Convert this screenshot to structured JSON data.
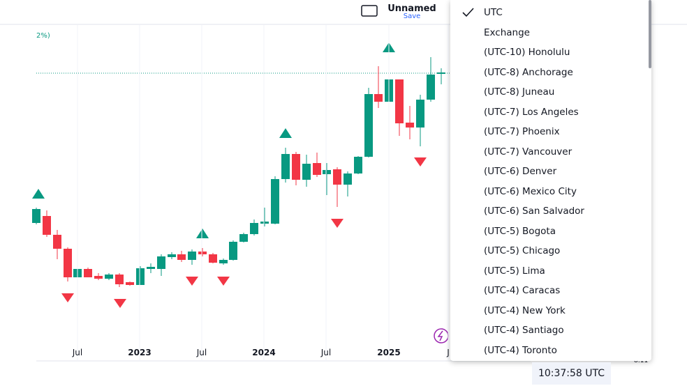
{
  "header": {
    "layout_name": "Unnamed",
    "save": "Save"
  },
  "chart": {
    "legend_fragment": "2%)",
    "time_axis": [
      "Jul",
      "2023",
      "Jul",
      "2024",
      "Jul",
      "2025",
      "J"
    ],
    "right_fragment": "8:11"
  },
  "timezone_menu": {
    "selected": 0,
    "items": [
      "UTC",
      "Exchange",
      "(UTC-10) Honolulu",
      "(UTC-8) Anchorage",
      "(UTC-8) Juneau",
      "(UTC-7) Los Angeles",
      "(UTC-7) Phoenix",
      "(UTC-7) Vancouver",
      "(UTC-6) Denver",
      "(UTC-6) Mexico City",
      "(UTC-6) San Salvador",
      "(UTC-5) Bogota",
      "(UTC-5) Chicago",
      "(UTC-5) Lima",
      "(UTC-4) Caracas",
      "(UTC-4) New York",
      "(UTC-4) Santiago",
      "(UTC-4) Toronto"
    ]
  },
  "clock": "10:37:58 UTC"
}
